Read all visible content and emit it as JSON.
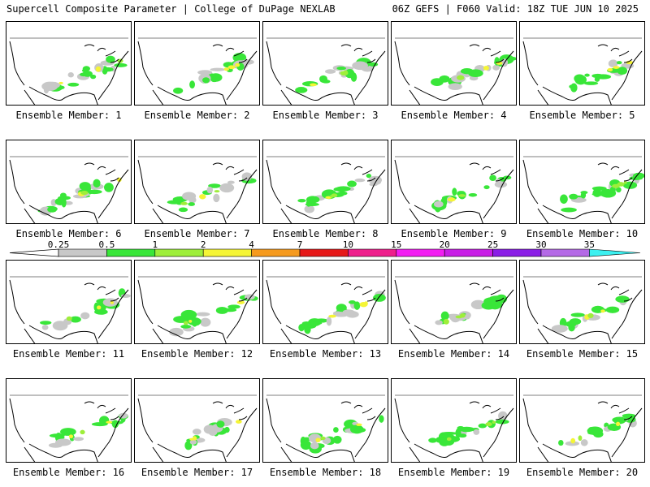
{
  "header": {
    "left_title": "Supercell Composite Parameter | College of DuPage NEXLAB",
    "right_title": "06Z GEFS | F060 Valid: 18Z TUE JUN 10 2025"
  },
  "panels": [
    {
      "caption": "Ensemble Member: 1"
    },
    {
      "caption": "Ensemble Member: 2"
    },
    {
      "caption": "Ensemble Member: 3"
    },
    {
      "caption": "Ensemble Member: 4"
    },
    {
      "caption": "Ensemble Member: 5"
    },
    {
      "caption": "Ensemble Member: 6"
    },
    {
      "caption": "Ensemble Member: 7"
    },
    {
      "caption": "Ensemble Member: 8"
    },
    {
      "caption": "Ensemble Member: 9"
    },
    {
      "caption": "Ensemble Member: 10"
    },
    {
      "caption": "Ensemble Member: 11"
    },
    {
      "caption": "Ensemble Member: 12"
    },
    {
      "caption": "Ensemble Member: 13"
    },
    {
      "caption": "Ensemble Member: 14"
    },
    {
      "caption": "Ensemble Member: 15"
    },
    {
      "caption": "Ensemble Member: 16"
    },
    {
      "caption": "Ensemble Member: 17"
    },
    {
      "caption": "Ensemble Member: 18"
    },
    {
      "caption": "Ensemble Member: 19"
    },
    {
      "caption": "Ensemble Member: 20"
    }
  ],
  "colorbar": {
    "labels": [
      "0.25",
      "0.5",
      "1",
      "2",
      "4",
      "7",
      "10",
      "15",
      "20",
      "25",
      "30",
      "35"
    ],
    "colors": [
      "#c8c8c8",
      "#39e639",
      "#9eee3a",
      "#f5f536",
      "#f59a1e",
      "#e61919",
      "#ee1f8c",
      "#f21ef2",
      "#c81ee6",
      "#8a1ee6",
      "#b469e6",
      "#3cf0f0"
    ]
  }
}
